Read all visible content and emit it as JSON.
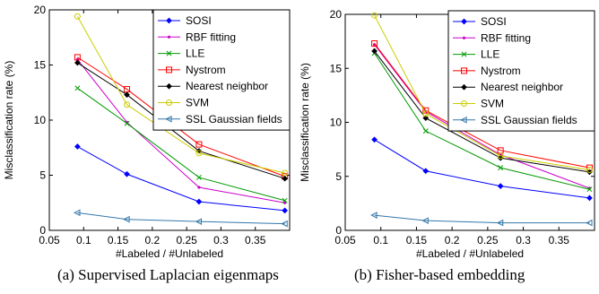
{
  "chart_data": [
    {
      "type": "line",
      "xlabel": "#Labeled / #Unlabeled",
      "ylabel": "Misclassification rate (%)",
      "xlim": [
        0.05,
        0.4
      ],
      "ylim": [
        0,
        20
      ],
      "xticks": [
        0.05,
        0.1,
        0.15,
        0.2,
        0.25,
        0.3,
        0.35
      ],
      "xtick_labels": [
        "0.05",
        "0.1",
        "0.15",
        "0.2",
        "0.25",
        "0.3",
        "0.35"
      ],
      "yticks": [
        0,
        5,
        10,
        15,
        20
      ],
      "ytick_labels": [
        "0",
        "5",
        "10",
        "15",
        "20"
      ],
      "legend_position": "top-right",
      "grid": false,
      "x": [
        0.091,
        0.163,
        0.268,
        0.393
      ],
      "series": [
        {
          "name": "SOSI",
          "color": "#0000ff",
          "marker": "diamond",
          "values": [
            7.6,
            5.1,
            2.6,
            1.8
          ]
        },
        {
          "name": "RBF fitting",
          "color": "#cc00cc",
          "marker": "dot",
          "values": [
            15.5,
            9.8,
            3.9,
            2.5
          ]
        },
        {
          "name": "LLE",
          "color": "#009900",
          "marker": "x",
          "values": [
            12.9,
            9.7,
            4.8,
            2.7
          ]
        },
        {
          "name": "Nystrom",
          "color": "#ff0000",
          "marker": "square",
          "values": [
            15.7,
            12.8,
            7.8,
            4.9
          ]
        },
        {
          "name": "Nearest neighbor",
          "color": "#000000",
          "marker": "diamond",
          "values": [
            15.2,
            12.3,
            7.2,
            4.7
          ]
        },
        {
          "name": "SVM",
          "color": "#cccc00",
          "marker": "circle",
          "values": [
            19.4,
            11.4,
            7.0,
            5.2
          ]
        },
        {
          "name": "SSL Gaussian fields",
          "color": "#3377aa",
          "marker": "triangle-left",
          "values": [
            1.6,
            1.0,
            0.8,
            0.6
          ]
        }
      ]
    },
    {
      "type": "line",
      "xlabel": "#Labeled / #Unlabeled",
      "ylabel": "Misclassification rate (%)",
      "xlim": [
        0.05,
        0.4
      ],
      "ylim": [
        0,
        20
      ],
      "xticks": [
        0.05,
        0.1,
        0.15,
        0.2,
        0.25,
        0.3,
        0.35
      ],
      "xtick_labels": [
        "0.05",
        "0.1",
        "0.15",
        "0.2",
        "0.25",
        "0.3",
        "0.35"
      ],
      "yticks": [
        0,
        5,
        10,
        15,
        20
      ],
      "ytick_labels": [
        "0",
        "5",
        "10",
        "15",
        "20"
      ],
      "legend_position": "top-right",
      "grid": false,
      "x": [
        0.091,
        0.163,
        0.268,
        0.393
      ],
      "series": [
        {
          "name": "SOSI",
          "color": "#0000ff",
          "marker": "diamond",
          "values": [
            8.4,
            5.5,
            4.1,
            3.0
          ]
        },
        {
          "name": "RBF fitting",
          "color": "#cc00cc",
          "marker": "dot",
          "values": [
            17.2,
            11.0,
            7.0,
            3.9
          ]
        },
        {
          "name": "LLE",
          "color": "#009900",
          "marker": "x",
          "values": [
            16.4,
            9.2,
            5.8,
            3.8
          ]
        },
        {
          "name": "Nystrom",
          "color": "#ff0000",
          "marker": "square",
          "values": [
            17.3,
            11.1,
            7.4,
            5.8
          ]
        },
        {
          "name": "Nearest neighbor",
          "color": "#000000",
          "marker": "diamond",
          "values": [
            16.6,
            10.4,
            6.7,
            5.4
          ]
        },
        {
          "name": "SVM",
          "color": "#cccc00",
          "marker": "circle",
          "values": [
            19.9,
            10.8,
            6.9,
            5.6
          ]
        },
        {
          "name": "SSL Gaussian fields",
          "color": "#3377aa",
          "marker": "triangle-left",
          "values": [
            1.4,
            0.9,
            0.7,
            0.7
          ]
        }
      ]
    }
  ],
  "captions": [
    "(a) Supervised Laplacian eigenmaps",
    "(b) Fisher-based embedding"
  ]
}
